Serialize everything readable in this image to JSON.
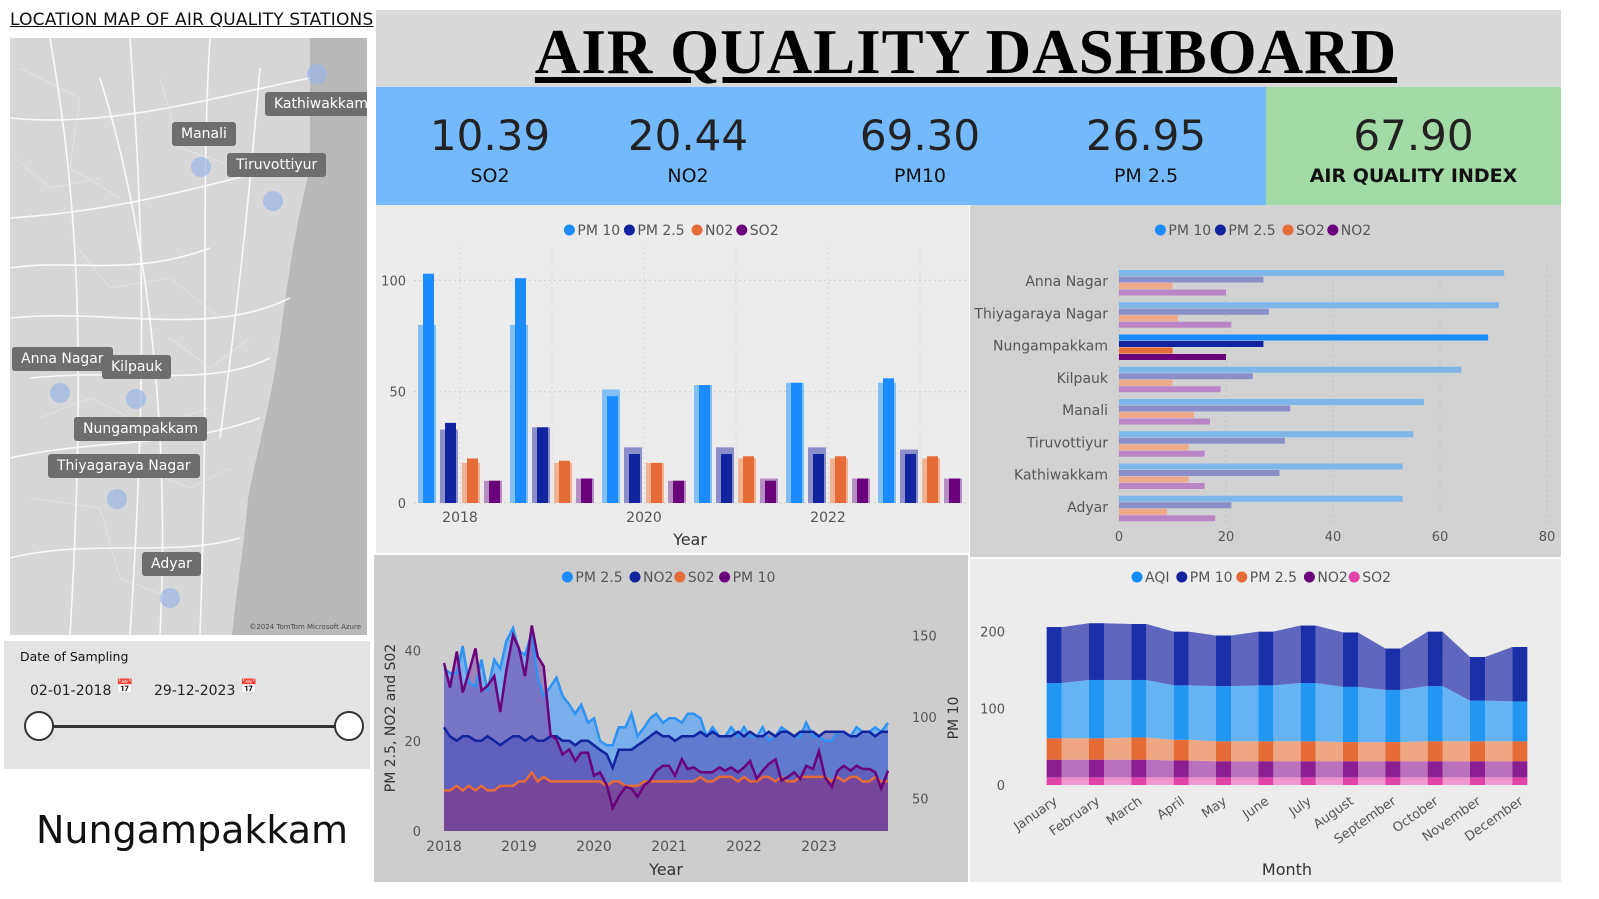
{
  "map": {
    "title": "LOCATION MAP OF AIR QUALITY STATIONS",
    "labels": [
      "Kathiwakkam",
      "Manali",
      "Tiruvottiyur",
      "Anna Nagar",
      "Kilpauk",
      "Nungampakkam",
      "Thiyagaraya Nagar",
      "Adyar"
    ],
    "credit": "©2024 TomTom   Microsoft Azure"
  },
  "date_filter": {
    "title": "Date of Sampling",
    "start": "02-01-2018",
    "end": "29-12-2023"
  },
  "selected_station": "Nungampakkam",
  "header": {
    "title": "AIR QUALITY DASHBOARD"
  },
  "kpis": [
    {
      "value": "10.39",
      "label": "SO2"
    },
    {
      "value": "20.44",
      "label": "NO2"
    },
    {
      "value": "69.30",
      "label": "PM10"
    },
    {
      "value": "26.95",
      "label": "PM 2.5"
    }
  ],
  "aqi": {
    "value": "67.90",
    "label": "AIR QUALITY INDEX"
  },
  "colors": {
    "kpi_bg": "#74b9fb",
    "aqi_bg": "#a2dba5",
    "pm10": "#1a8cff",
    "pm25": "#12239e",
    "no2": "#e66c37",
    "so2": "#6b007b",
    "aqi": "#118dff",
    "so2_pink": "#e044a7"
  },
  "chart_data": [
    {
      "type": "bar",
      "legend": [
        "PM 10",
        "PM 2.5",
        "N02",
        "SO2"
      ],
      "xlabel": "Year",
      "xticks": [
        "2018",
        "2020",
        "2022"
      ],
      "ylim": [
        0,
        115
      ],
      "yticks": [
        0,
        50,
        100
      ],
      "categories": [
        "2018",
        "2019",
        "2020",
        "2021",
        "2022",
        "2023"
      ],
      "series": [
        {
          "name": "PM 10",
          "values": [
            103,
            101,
            48,
            53,
            54,
            56
          ],
          "shadow": [
            80,
            80,
            51,
            53,
            54,
            54
          ]
        },
        {
          "name": "PM 2.5",
          "values": [
            36,
            34,
            22,
            22,
            22,
            22
          ],
          "shadow": [
            33,
            34,
            25,
            25,
            25,
            24
          ]
        },
        {
          "name": "N02",
          "values": [
            20,
            19,
            18,
            21,
            21,
            21
          ],
          "shadow": [
            18,
            18,
            18,
            20,
            20,
            20
          ]
        },
        {
          "name": "SO2",
          "values": [
            10,
            11,
            10,
            10,
            11,
            11
          ],
          "shadow": [
            10,
            11,
            10,
            11,
            11,
            11
          ]
        }
      ]
    },
    {
      "type": "bar",
      "orientation": "horizontal",
      "legend": [
        "PM 10",
        "PM 2.5",
        "SO2",
        "NO2"
      ],
      "categories": [
        "Anna Nagar",
        "Thiyagaraya Nagar",
        "Nungampakkam",
        "Kilpauk",
        "Manali",
        "Tiruvottiyur",
        "Kathiwakkam",
        "Adyar"
      ],
      "xlim": [
        0,
        80
      ],
      "xticks": [
        0,
        20,
        40,
        60,
        80
      ],
      "series": [
        {
          "name": "PM 10",
          "values": [
            72,
            71,
            69,
            64,
            57,
            55,
            53,
            53
          ]
        },
        {
          "name": "PM 2.5",
          "values": [
            27,
            28,
            27,
            25,
            32,
            31,
            30,
            21
          ]
        },
        {
          "name": "SO2",
          "values": [
            10,
            11,
            10,
            10,
            14,
            13,
            13,
            9
          ]
        },
        {
          "name": "NO2",
          "values": [
            20,
            21,
            20,
            19,
            17,
            16,
            16,
            18
          ]
        }
      ]
    },
    {
      "type": "area",
      "legend": [
        "PM 2.5",
        "NO2",
        "S02",
        "PM 10"
      ],
      "xlabel": "Year",
      "ylabel_left": "PM 2.5, NO2 and S02",
      "ylabel_right": "PM 10",
      "xticks": [
        "2018",
        "2019",
        "2020",
        "2021",
        "2022",
        "2023"
      ],
      "ylim_left": [
        0,
        47
      ],
      "yticks_left": [
        0,
        20,
        40
      ],
      "ylim_right": [
        30,
        160
      ],
      "yticks_right": [
        50,
        100,
        150
      ],
      "x": [
        2018.0,
        2018.08,
        2018.17,
        2018.25,
        2018.33,
        2018.42,
        2018.5,
        2018.58,
        2018.67,
        2018.75,
        2018.83,
        2018.92,
        2019.0,
        2019.08,
        2019.17,
        2019.25,
        2019.33,
        2019.42,
        2019.5,
        2019.58,
        2019.67,
        2019.75,
        2019.83,
        2019.92,
        2020.0,
        2020.08,
        2020.17,
        2020.25,
        2020.33,
        2020.42,
        2020.5,
        2020.58,
        2020.67,
        2020.75,
        2020.83,
        2020.92,
        2021.0,
        2021.08,
        2021.17,
        2021.25,
        2021.33,
        2021.42,
        2021.5,
        2021.58,
        2021.67,
        2021.75,
        2021.83,
        2021.92,
        2022.0,
        2022.08,
        2022.17,
        2022.25,
        2022.33,
        2022.42,
        2022.5,
        2022.58,
        2022.67,
        2022.75,
        2022.83,
        2022.92,
        2023.0,
        2023.08,
        2023.17,
        2023.25,
        2023.33,
        2023.42,
        2023.5,
        2023.58,
        2023.67,
        2023.75,
        2023.83,
        2023.92
      ],
      "series": [
        {
          "name": "PM 2.5",
          "axis": "left",
          "values": [
            36,
            35,
            35,
            41,
            33,
            32,
            38,
            31,
            38,
            36,
            42,
            45,
            40,
            39,
            44,
            34,
            30,
            32,
            34,
            30,
            28,
            26,
            28,
            24,
            25,
            20,
            19,
            19,
            23,
            23,
            26,
            21,
            23,
            25,
            26,
            24,
            25,
            25,
            24,
            26,
            26,
            25,
            21,
            23,
            21,
            21,
            23,
            21,
            23,
            21,
            21,
            23,
            20,
            21,
            23,
            22,
            21,
            21,
            24,
            21,
            21,
            20,
            20,
            22,
            22,
            21,
            23,
            22,
            22,
            23,
            22,
            24
          ]
        },
        {
          "name": "NO2",
          "axis": "left",
          "values": [
            23,
            21,
            20,
            21,
            21,
            20,
            20,
            21,
            20,
            19,
            20,
            21,
            21,
            20,
            21,
            20,
            20,
            21,
            21,
            20,
            20,
            19,
            20,
            20,
            19,
            18,
            17,
            14,
            18,
            18,
            18,
            19,
            20,
            21,
            22,
            21,
            21,
            20,
            21,
            21,
            21,
            22,
            21,
            22,
            21,
            21,
            21,
            22,
            21,
            22,
            21,
            21,
            22,
            21,
            22,
            22,
            21,
            22,
            22,
            22,
            21,
            22,
            22,
            22,
            22,
            21,
            21,
            22,
            22,
            21,
            22,
            22
          ]
        },
        {
          "name": "S02",
          "axis": "left",
          "values": [
            9,
            9,
            10,
            9,
            10,
            9,
            10,
            9,
            9,
            10,
            10,
            10,
            11,
            11,
            13,
            11,
            12,
            11,
            11,
            11,
            11,
            11,
            11,
            11,
            11,
            11,
            10,
            11,
            11,
            10,
            10,
            10,
            11,
            11,
            11,
            11,
            11,
            11,
            11,
            11,
            11,
            12,
            11,
            11,
            12,
            12,
            12,
            11,
            12,
            11,
            11,
            12,
            12,
            11,
            12,
            11,
            11,
            12,
            12,
            12,
            12,
            12,
            11,
            12,
            11,
            12,
            12,
            11,
            11,
            12,
            11,
            11
          ]
        },
        {
          "name": "PM 10",
          "axis": "right",
          "values": [
            133,
            118,
            140,
            115,
            127,
            142,
            116,
            119,
            125,
            103,
            128,
            150,
            142,
            125,
            156,
            137,
            131,
            89,
            86,
            77,
            80,
            73,
            78,
            78,
            64,
            66,
            58,
            44,
            51,
            57,
            56,
            51,
            58,
            61,
            67,
            70,
            70,
            64,
            74,
            68,
            69,
            66,
            66,
            66,
            69,
            67,
            69,
            66,
            69,
            73,
            62,
            67,
            71,
            74,
            61,
            63,
            66,
            62,
            70,
            68,
            79,
            63,
            57,
            67,
            70,
            67,
            70,
            68,
            68,
            66,
            56,
            67
          ]
        }
      ]
    },
    {
      "type": "area",
      "subtype": "stacked-ribbon",
      "legend": [
        "AQI",
        "PM 10",
        "PM 2.5",
        "NO2",
        "SO2"
      ],
      "xlabel": "Month",
      "ylim": [
        0,
        240
      ],
      "yticks": [
        0,
        100,
        200
      ],
      "categories": [
        "January",
        "February",
        "March",
        "April",
        "May",
        "June",
        "July",
        "August",
        "September",
        "October",
        "November",
        "December"
      ],
      "series": [
        {
          "name": "SO2",
          "values": [
            10,
            10,
            10,
            10,
            10,
            10,
            10,
            10,
            10,
            10,
            10,
            10
          ]
        },
        {
          "name": "NO2",
          "values": [
            23,
            23,
            23,
            22,
            21,
            21,
            21,
            21,
            21,
            21,
            21,
            21
          ]
        },
        {
          "name": "PM 2.5",
          "values": [
            28,
            28,
            29,
            27,
            26,
            26,
            26,
            25,
            25,
            26,
            26,
            26
          ]
        },
        {
          "name": "AQI",
          "values": [
            72,
            76,
            75,
            71,
            72,
            73,
            76,
            72,
            68,
            72,
            53,
            52
          ]
        },
        {
          "name": "PM 10",
          "values": [
            73,
            74,
            73,
            70,
            66,
            70,
            75,
            71,
            54,
            71,
            57,
            71
          ]
        }
      ]
    }
  ]
}
